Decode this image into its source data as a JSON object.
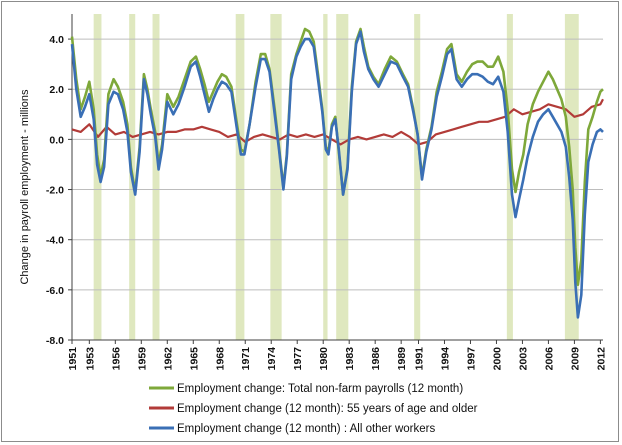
{
  "chart_data": {
    "type": "line",
    "ylabel": "Change in payroll employment - millions",
    "xlim": [
      1951.0,
      2012.3
    ],
    "ylim": [
      -8.0,
      5.0
    ],
    "yticks": [
      -8,
      -6,
      -4,
      -2,
      0,
      2,
      4
    ],
    "ytick_labels": [
      "-8.0",
      "-6.0",
      "-4.0",
      "-2.0",
      "0.0",
      "2.0",
      "4.0"
    ],
    "xtick_labels": [
      "1951",
      "1953",
      "1956",
      "1959",
      "1962",
      "1965",
      "1968",
      "1971",
      "1974",
      "1977",
      "1980",
      "1983",
      "1986",
      "1989",
      "1991",
      "1994",
      "1997",
      "2000",
      "2003",
      "2006",
      "2009",
      "2012"
    ],
    "xtick_values": [
      1951,
      1953,
      1956,
      1959,
      1962,
      1965,
      1968,
      1971,
      1974,
      1977,
      1980,
      1983,
      1986,
      1989,
      1991,
      1994,
      1997,
      2000,
      2003,
      2006,
      2009,
      2012
    ],
    "grid": "horizontal",
    "legend_position": "bottom",
    "recessions": [
      [
        1953.5,
        1954.4
      ],
      [
        1957.6,
        1958.3
      ],
      [
        1960.3,
        1961.1
      ],
      [
        1969.9,
        1970.9
      ],
      [
        1973.9,
        1975.2
      ],
      [
        1980.0,
        1980.5
      ],
      [
        1981.5,
        1982.9
      ],
      [
        1990.5,
        1991.2
      ],
      [
        2001.2,
        2001.9
      ],
      [
        2007.9,
        2009.5
      ]
    ],
    "colors": {
      "total": "#7ea83a",
      "older": "#b23b38",
      "other": "#3a6fb5",
      "recession": "#dfe8bf",
      "grid": "#bdbdbd",
      "axis": "#404040"
    },
    "series": [
      {
        "name": "Employment change: Total non-farm payrolls (12 month)",
        "key": "total",
        "x": [
          1951.0,
          1951.5,
          1952.0,
          1952.5,
          1953.0,
          1953.5,
          1953.9,
          1954.3,
          1954.7,
          1955.2,
          1955.8,
          1956.3,
          1956.9,
          1957.4,
          1957.8,
          1958.3,
          1958.8,
          1959.3,
          1959.7,
          1960.1,
          1960.6,
          1961.0,
          1961.4,
          1962.0,
          1962.7,
          1963.3,
          1964.0,
          1964.7,
          1965.3,
          1965.8,
          1966.3,
          1966.8,
          1967.3,
          1967.8,
          1968.3,
          1968.8,
          1969.4,
          1970.0,
          1970.5,
          1970.9,
          1971.5,
          1972.2,
          1972.8,
          1973.3,
          1973.8,
          1974.4,
          1974.9,
          1975.4,
          1975.8,
          1976.3,
          1976.9,
          1977.4,
          1977.9,
          1978.4,
          1978.9,
          1979.4,
          1979.9,
          1980.3,
          1980.6,
          1981.0,
          1981.4,
          1981.8,
          1982.3,
          1982.8,
          1983.3,
          1983.8,
          1984.3,
          1984.7,
          1985.2,
          1985.8,
          1986.4,
          1987.1,
          1987.8,
          1988.5,
          1989.2,
          1989.8,
          1990.4,
          1990.9,
          1991.4,
          1991.9,
          1992.5,
          1993.1,
          1993.7,
          1994.3,
          1994.8,
          1995.4,
          1996.0,
          1996.6,
          1997.2,
          1997.8,
          1998.4,
          1999.0,
          1999.6,
          2000.2,
          2000.8,
          2001.3,
          2001.8,
          2002.2,
          2002.6,
          2003.1,
          2003.6,
          2004.2,
          2004.8,
          2005.4,
          2006.0,
          2006.5,
          2007.0,
          2007.5,
          2008.0,
          2008.4,
          2008.8,
          2009.1,
          2009.4,
          2009.8,
          2010.2,
          2010.6,
          2011.1,
          2011.6,
          2012.0,
          2012.3
        ],
        "y": [
          4.1,
          2.4,
          1.2,
          1.7,
          2.3,
          1.2,
          -0.6,
          -1.5,
          -0.8,
          1.8,
          2.4,
          2.1,
          1.5,
          0.6,
          -1.1,
          -2.1,
          -0.3,
          2.6,
          2.0,
          1.2,
          0.3,
          -1.0,
          -0.2,
          1.8,
          1.3,
          1.7,
          2.4,
          3.1,
          3.3,
          2.8,
          2.2,
          1.5,
          1.9,
          2.3,
          2.6,
          2.5,
          2.1,
          0.7,
          -0.4,
          -0.5,
          0.6,
          2.3,
          3.4,
          3.4,
          2.8,
          1.2,
          -0.3,
          -1.9,
          -0.6,
          2.6,
          3.4,
          3.9,
          4.4,
          4.3,
          3.9,
          2.6,
          1.2,
          -0.3,
          -0.5,
          0.6,
          0.9,
          -0.5,
          -2.2,
          -1.1,
          2.1,
          3.9,
          4.4,
          3.7,
          2.9,
          2.5,
          2.2,
          2.8,
          3.3,
          3.1,
          2.6,
          2.2,
          1.2,
          0.2,
          -1.5,
          -0.4,
          0.5,
          1.9,
          2.7,
          3.6,
          3.8,
          2.6,
          2.3,
          2.7,
          3.0,
          3.1,
          3.1,
          2.9,
          2.9,
          3.3,
          2.7,
          1.2,
          -1.2,
          -2.1,
          -1.3,
          -0.6,
          0.6,
          1.4,
          1.9,
          2.3,
          2.7,
          2.4,
          2.0,
          1.6,
          0.9,
          -0.3,
          -2.0,
          -4.3,
          -5.8,
          -4.8,
          -1.7,
          0.4,
          0.9,
          1.5,
          1.9,
          2.0
        ]
      },
      {
        "name": "Employment change (12 month): 55 years of age and older",
        "key": "older",
        "x": [
          1951.0,
          1952.0,
          1953.0,
          1954.0,
          1955.0,
          1956.0,
          1957.0,
          1958.0,
          1959.0,
          1960.0,
          1961.0,
          1962.0,
          1963.0,
          1964.0,
          1965.0,
          1966.0,
          1967.0,
          1968.0,
          1969.0,
          1970.0,
          1971.0,
          1972.0,
          1973.0,
          1974.0,
          1975.0,
          1976.0,
          1977.0,
          1978.0,
          1979.0,
          1980.0,
          1981.0,
          1982.0,
          1983.0,
          1984.0,
          1985.0,
          1986.0,
          1987.0,
          1988.0,
          1989.0,
          1990.0,
          1991.0,
          1992.0,
          1993.0,
          1994.0,
          1995.0,
          1996.0,
          1997.0,
          1998.0,
          1999.0,
          2000.0,
          2001.0,
          2002.0,
          2003.0,
          2004.0,
          2005.0,
          2006.0,
          2007.0,
          2008.0,
          2009.0,
          2010.0,
          2011.0,
          2012.0,
          2012.3
        ],
        "y": [
          0.4,
          0.3,
          0.6,
          0.1,
          0.5,
          0.2,
          0.3,
          0.1,
          0.2,
          0.3,
          0.2,
          0.3,
          0.3,
          0.4,
          0.4,
          0.5,
          0.4,
          0.3,
          0.1,
          0.2,
          -0.1,
          0.1,
          0.2,
          0.1,
          0.0,
          0.2,
          0.1,
          0.2,
          0.1,
          0.2,
          0.0,
          -0.2,
          0.0,
          0.1,
          0.0,
          0.1,
          0.2,
          0.1,
          0.3,
          0.1,
          -0.2,
          -0.1,
          0.2,
          0.3,
          0.4,
          0.5,
          0.6,
          0.7,
          0.7,
          0.8,
          0.9,
          1.2,
          1.0,
          1.1,
          1.2,
          1.4,
          1.3,
          1.2,
          0.9,
          1.0,
          1.3,
          1.4,
          1.6
        ]
      },
      {
        "name": "Employment change (12 month) : All other workers",
        "key": "other",
        "x": [
          1951.0,
          1951.5,
          1952.0,
          1952.5,
          1953.0,
          1953.5,
          1953.9,
          1954.3,
          1954.7,
          1955.2,
          1955.8,
          1956.3,
          1956.9,
          1957.4,
          1957.8,
          1958.3,
          1958.8,
          1959.3,
          1959.7,
          1960.1,
          1960.6,
          1961.0,
          1961.4,
          1962.0,
          1962.7,
          1963.3,
          1964.0,
          1964.7,
          1965.3,
          1965.8,
          1966.3,
          1966.8,
          1967.3,
          1967.8,
          1968.3,
          1968.8,
          1969.4,
          1970.0,
          1970.5,
          1970.9,
          1971.5,
          1972.2,
          1972.8,
          1973.3,
          1973.8,
          1974.4,
          1974.9,
          1975.4,
          1975.8,
          1976.3,
          1976.9,
          1977.4,
          1977.9,
          1978.4,
          1978.9,
          1979.4,
          1979.9,
          1980.3,
          1980.6,
          1981.0,
          1981.4,
          1981.8,
          1982.3,
          1982.8,
          1983.3,
          1983.8,
          1984.3,
          1984.7,
          1985.2,
          1985.8,
          1986.4,
          1987.1,
          1987.8,
          1988.5,
          1989.2,
          1989.8,
          1990.4,
          1990.9,
          1991.4,
          1991.9,
          1992.5,
          1993.1,
          1993.7,
          1994.3,
          1994.8,
          1995.4,
          1996.0,
          1996.6,
          1997.2,
          1997.8,
          1998.4,
          1999.0,
          1999.6,
          2000.2,
          2000.8,
          2001.3,
          2001.8,
          2002.2,
          2002.6,
          2003.1,
          2003.6,
          2004.2,
          2004.8,
          2005.4,
          2006.0,
          2006.5,
          2007.0,
          2007.5,
          2008.0,
          2008.4,
          2008.8,
          2009.1,
          2009.4,
          2009.8,
          2010.2,
          2010.6,
          2011.1,
          2011.6,
          2012.0,
          2012.3
        ],
        "y": [
          3.8,
          2.0,
          0.9,
          1.3,
          1.8,
          0.8,
          -1.0,
          -1.7,
          -1.1,
          1.4,
          1.9,
          1.8,
          1.2,
          0.3,
          -1.3,
          -2.2,
          -0.5,
          2.4,
          1.8,
          1.0,
          0.1,
          -1.2,
          -0.4,
          1.5,
          1.0,
          1.4,
          2.1,
          2.9,
          3.1,
          2.5,
          1.8,
          1.1,
          1.6,
          2.0,
          2.3,
          2.2,
          1.9,
          0.5,
          -0.6,
          -0.6,
          0.6,
          2.1,
          3.2,
          3.2,
          2.7,
          1.0,
          -0.4,
          -2.0,
          -0.7,
          2.4,
          3.3,
          3.7,
          4.0,
          4.0,
          3.7,
          2.4,
          1.1,
          -0.4,
          -0.6,
          0.5,
          0.8,
          -0.4,
          -2.2,
          -1.2,
          1.9,
          3.8,
          4.3,
          3.5,
          2.8,
          2.4,
          2.1,
          2.6,
          3.1,
          3.0,
          2.5,
          2.1,
          1.1,
          0.2,
          -1.6,
          -0.5,
          0.4,
          1.7,
          2.5,
          3.4,
          3.6,
          2.4,
          2.1,
          2.4,
          2.6,
          2.6,
          2.5,
          2.3,
          2.2,
          2.5,
          1.9,
          0.3,
          -2.2,
          -3.1,
          -2.4,
          -1.6,
          -0.7,
          0.1,
          0.7,
          1.0,
          1.2,
          0.9,
          0.6,
          0.3,
          -0.3,
          -1.5,
          -3.2,
          -5.7,
          -7.1,
          -6.2,
          -3.0,
          -0.9,
          -0.2,
          0.3,
          0.4,
          0.3
        ]
      }
    ]
  }
}
